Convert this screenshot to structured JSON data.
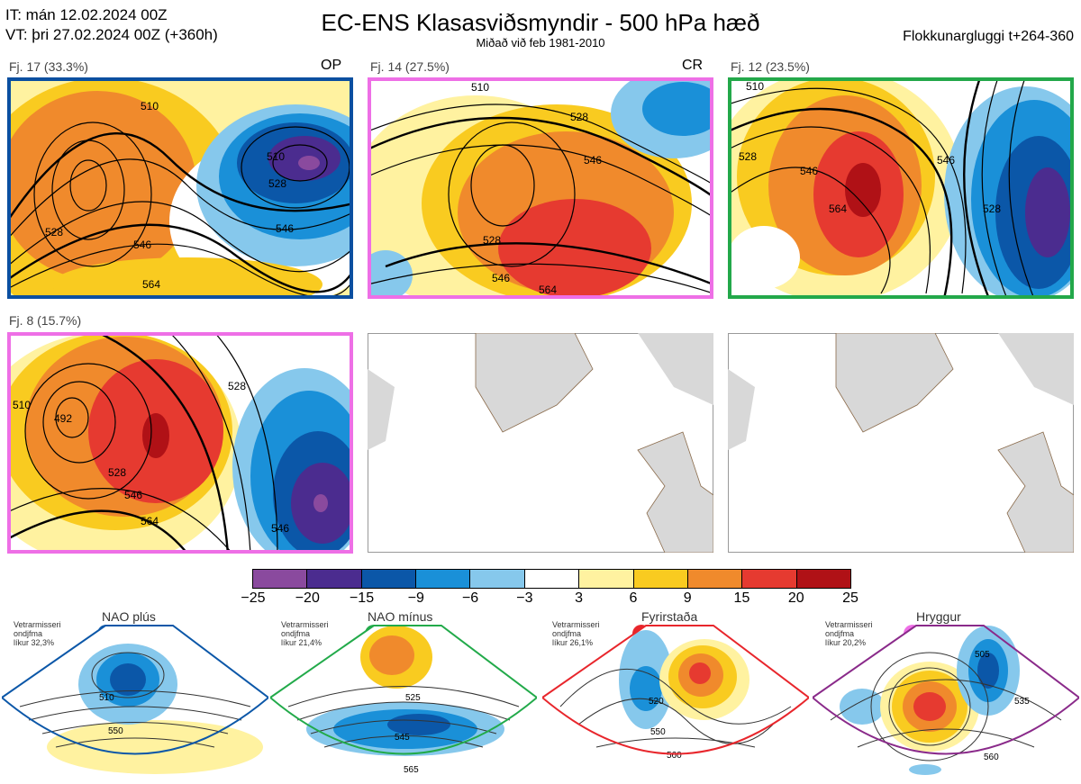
{
  "header": {
    "init_line": "IT: mán 12.02.2024 00Z",
    "valid_line": "VT: þri 27.02.2024 00Z  (+360h)",
    "title": "EC-ENS Klasasviðsmyndir - 500 hPa hæð",
    "subtitle": "Miðað við feb 1981-2010",
    "window": "Flokkunargluggi t+264-360"
  },
  "clusters": [
    {
      "label": "Fj. 17 (33.3%)",
      "tag": "OP",
      "border": "#0b4fa0",
      "contours": [
        "510",
        "510",
        "528",
        "546",
        "564",
        "528",
        "546"
      ]
    },
    {
      "label": "Fj. 14 (27.5%)",
      "tag": "CR",
      "border": "#ee6fe6",
      "contours": [
        "510",
        "528",
        "546",
        "528",
        "546",
        "564"
      ]
    },
    {
      "label": "Fj. 12 (23.5%)",
      "tag": "",
      "border": "#23a84a",
      "contours": [
        "510",
        "528",
        "546",
        "564",
        "528",
        "546"
      ]
    },
    {
      "label": "Fj. 8 (15.7%)",
      "tag": "",
      "border": "#ee6fe6",
      "contours": [
        "510",
        "492",
        "528",
        "546",
        "564",
        "528",
        "546"
      ]
    }
  ],
  "colorbar": {
    "ticks": [
      "−25",
      "−20",
      "−15",
      "−9",
      "−6",
      "−3",
      "3",
      "6",
      "9",
      "15",
      "20",
      "25"
    ],
    "colors": [
      "#8a4a9e",
      "#4b2c8f",
      "#0b57a8",
      "#1a90d8",
      "#86c8ec",
      "#ffffff",
      "#fff2a0",
      "#f9cb20",
      "#f08a2c",
      "#e63a30",
      "#b01116"
    ]
  },
  "regimes": [
    {
      "name": "NAO plús",
      "color": "#0b57a8",
      "border": "#0b57a8",
      "info": [
        "Vetrarmisseri",
        "ondjfma",
        "líkur 32,3%"
      ],
      "contours": [
        "510",
        "550"
      ]
    },
    {
      "name": "NAO mínus",
      "color": "#22aa4a",
      "border": "#22aa4a",
      "info": [
        "Vetrarmisseri",
        "ondjfma",
        "líkur 21,4%"
      ],
      "contours": [
        "525",
        "545",
        "565"
      ]
    },
    {
      "name": "Fyrirstaða",
      "color": "#e8262c",
      "border": "#e8262c",
      "info": [
        "Vetrarmisseri",
        "ondjfma",
        "líkur 26,1%"
      ],
      "contours": [
        "520",
        "550",
        "560"
      ]
    },
    {
      "name": "Hryggur",
      "color": "#ee6fe6",
      "border": "#8a2a8a",
      "info": [
        "Vetrarmisseri",
        "ondjfma",
        "líkur 20,2%"
      ],
      "contours": [
        "505",
        "535",
        "560"
      ]
    }
  ]
}
